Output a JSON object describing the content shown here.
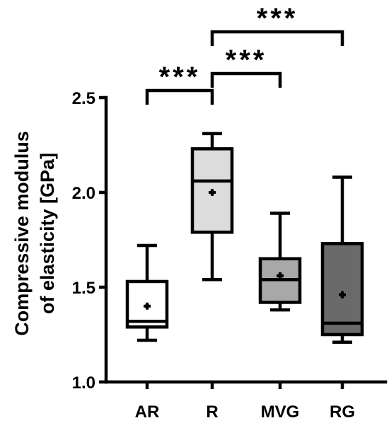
{
  "chart_data": {
    "type": "box",
    "ylabel_lines": [
      "Compressive modulus",
      "of elasticity [GPa]"
    ],
    "ylim": [
      1.0,
      2.5
    ],
    "yticks": [
      1.0,
      1.5,
      2.0,
      2.5
    ],
    "ytick_labels": [
      "1.0",
      "1.5",
      "2.0",
      "2.5"
    ],
    "categories": [
      "AR",
      "R",
      "MVG",
      "RG"
    ],
    "boxes": [
      {
        "name": "AR",
        "whisker_low": 1.22,
        "q1": 1.29,
        "median": 1.32,
        "q3": 1.53,
        "whisker_high": 1.72,
        "mean": 1.4,
        "fill": "#ffffff"
      },
      {
        "name": "R",
        "whisker_low": 1.54,
        "q1": 1.79,
        "median": 2.06,
        "q3": 2.23,
        "whisker_high": 2.31,
        "mean": 2.0,
        "fill": "#dcdcdc"
      },
      {
        "name": "MVG",
        "whisker_low": 1.38,
        "q1": 1.42,
        "median": 1.54,
        "q3": 1.65,
        "whisker_high": 1.89,
        "mean": 1.56,
        "fill": "#a8a8a8"
      },
      {
        "name": "RG",
        "whisker_low": 1.21,
        "q1": 1.25,
        "median": 1.31,
        "q3": 1.73,
        "whisker_high": 2.08,
        "mean": 1.46,
        "fill": "#6a6a6a"
      }
    ],
    "significance": [
      {
        "from": "AR",
        "to": "R",
        "label": "***"
      },
      {
        "from": "R",
        "to": "MVG",
        "label": "***"
      },
      {
        "from": "R",
        "to": "RG",
        "label": "***"
      }
    ],
    "grid": false,
    "legend": "none"
  }
}
